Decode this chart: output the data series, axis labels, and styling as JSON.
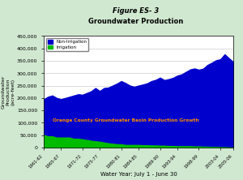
{
  "title_line1": "Figure ES- 3",
  "title_line2": "Groundwater Production",
  "xlabel": "Water Year: July 1 - June 30",
  "ylabel": "Groundwater\nProduction\n(acre-feet)",
  "ylim": [
    0,
    450000
  ],
  "yticks": [
    0,
    50000,
    100000,
    150000,
    200000,
    250000,
    300000,
    350000,
    400000,
    450000
  ],
  "ytick_labels": [
    "0",
    "50,000",
    "100,000",
    "150,000",
    "200,000",
    "250,000",
    "300,000",
    "350,000",
    "400,000",
    "450,000"
  ],
  "xtick_labels": [
    "1961-62",
    "1965-67",
    "1971-72",
    "1975-77",
    "1980-81",
    "1984-85",
    "1989-90",
    "1993-94",
    "1998-99",
    "2003-04",
    "2005-06"
  ],
  "color_non_irrigation": "#0000CC",
  "color_irrigation": "#00BB00",
  "annotation": "Orange County Groundwater Basin Production Growth",
  "annotation_color": "#FF8C00",
  "legend_entries": [
    "Non-Irrigation",
    "Irrigation"
  ],
  "bg_outer": "#d0e8d0",
  "bg_plot": "#ffffff",
  "years": [
    1962,
    1963,
    1964,
    1965,
    1966,
    1967,
    1968,
    1969,
    1970,
    1971,
    1972,
    1973,
    1974,
    1975,
    1976,
    1977,
    1978,
    1979,
    1980,
    1981,
    1982,
    1983,
    1984,
    1985,
    1986,
    1987,
    1988,
    1989,
    1990,
    1991,
    1992,
    1993,
    1994,
    1995,
    1996,
    1997,
    1998,
    1999,
    2000,
    2001,
    2002,
    2003,
    2004,
    2005,
    2006
  ],
  "non_irrigation": [
    140000,
    155000,
    160000,
    155000,
    150000,
    155000,
    160000,
    170000,
    175000,
    175000,
    185000,
    195000,
    210000,
    200000,
    215000,
    220000,
    230000,
    240000,
    250000,
    245000,
    235000,
    230000,
    235000,
    240000,
    245000,
    255000,
    260000,
    270000,
    260000,
    265000,
    270000,
    280000,
    285000,
    295000,
    305000,
    310000,
    305000,
    310000,
    325000,
    335000,
    345000,
    350000,
    370000,
    355000,
    340000
  ],
  "irrigation": [
    55000,
    50000,
    50000,
    45000,
    45000,
    45000,
    45000,
    40000,
    40000,
    38000,
    35000,
    32000,
    30000,
    28000,
    25000,
    22000,
    20000,
    18000,
    18000,
    15000,
    15000,
    15000,
    15000,
    14000,
    14000,
    13000,
    13000,
    12000,
    12000,
    11000,
    11000,
    10000,
    10000,
    10000,
    10000,
    9000,
    9000,
    8000,
    8000,
    7000,
    7000,
    6000,
    6000,
    5000,
    5000
  ]
}
